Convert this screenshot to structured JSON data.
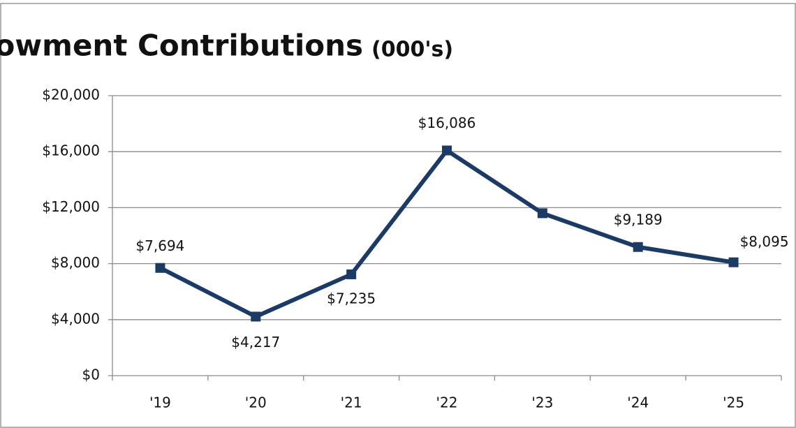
{
  "chart_data": {
    "type": "line",
    "title": "Endowment Contributions",
    "subtitle": "(000's)",
    "categories": [
      "'19",
      "'20",
      "'21",
      "'22",
      "'23",
      "'24",
      "'25"
    ],
    "series": [
      {
        "name": "Endowment Contributions",
        "color": "#1b3a66",
        "values": [
          7694,
          4217,
          7235,
          16086,
          11600,
          9189,
          8095
        ],
        "value_labels": [
          "$7,694",
          "$4,217",
          "$7,235",
          "$16,086",
          null,
          "$9,189",
          "$8,095"
        ]
      }
    ],
    "ylim": [
      0,
      20000
    ],
    "yticks": [
      {
        "value": 0,
        "label": "$0"
      },
      {
        "value": 4000,
        "label": "$4,000"
      },
      {
        "value": 8000,
        "label": "$8,000"
      },
      {
        "value": 12000,
        "label": "$12,000"
      },
      {
        "value": 16000,
        "label": "$16,000"
      },
      {
        "value": 20000,
        "label": "$20,000"
      }
    ],
    "grid": true
  }
}
